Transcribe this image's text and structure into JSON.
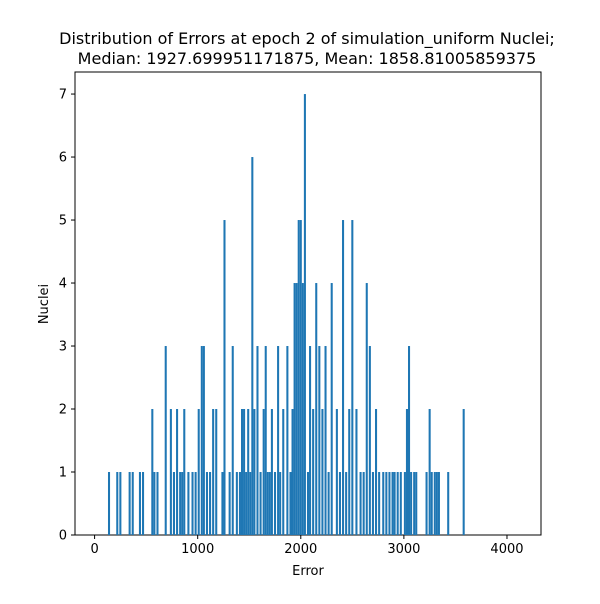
{
  "chart_data": {
    "type": "bar",
    "title_line1": "Distribution of Errors at epoch 2 of simulation_uniform Nuclei;",
    "title_line2": "Median: 1927.699951171875, Mean: 1858.81005859375",
    "xlabel": "Error",
    "ylabel": "Nuclei",
    "xlim": [
      -190,
      4330
    ],
    "ylim": [
      0,
      7.35
    ],
    "xticks": [
      0,
      1000,
      2000,
      3000,
      4000
    ],
    "yticks": [
      0,
      1,
      2,
      3,
      4,
      5,
      6,
      7
    ],
    "bin_width": 20,
    "color": "#1f77b4",
    "bins": [
      [
        130,
        1
      ],
      [
        210,
        1
      ],
      [
        240,
        1
      ],
      [
        330,
        1
      ],
      [
        360,
        1
      ],
      [
        430,
        1
      ],
      [
        460,
        1
      ],
      [
        550,
        2
      ],
      [
        570,
        1
      ],
      [
        600,
        1
      ],
      [
        680,
        3
      ],
      [
        730,
        2
      ],
      [
        760,
        1
      ],
      [
        790,
        2
      ],
      [
        820,
        1
      ],
      [
        840,
        1
      ],
      [
        860,
        2
      ],
      [
        900,
        1
      ],
      [
        940,
        1
      ],
      [
        970,
        1
      ],
      [
        1000,
        2
      ],
      [
        1030,
        3
      ],
      [
        1050,
        3
      ],
      [
        1080,
        1
      ],
      [
        1110,
        1
      ],
      [
        1140,
        2
      ],
      [
        1170,
        2
      ],
      [
        1230,
        1
      ],
      [
        1250,
        5
      ],
      [
        1300,
        1
      ],
      [
        1330,
        3
      ],
      [
        1370,
        1
      ],
      [
        1400,
        1
      ],
      [
        1420,
        2
      ],
      [
        1440,
        2
      ],
      [
        1460,
        1
      ],
      [
        1480,
        2
      ],
      [
        1500,
        1
      ],
      [
        1520,
        6
      ],
      [
        1540,
        2
      ],
      [
        1570,
        3
      ],
      [
        1600,
        1
      ],
      [
        1630,
        2
      ],
      [
        1650,
        3
      ],
      [
        1670,
        1
      ],
      [
        1690,
        1
      ],
      [
        1710,
        2
      ],
      [
        1740,
        1
      ],
      [
        1770,
        3
      ],
      [
        1790,
        1
      ],
      [
        1820,
        2
      ],
      [
        1860,
        3
      ],
      [
        1890,
        1
      ],
      [
        1910,
        2
      ],
      [
        1930,
        4
      ],
      [
        1950,
        4
      ],
      [
        1970,
        5
      ],
      [
        1990,
        5
      ],
      [
        2010,
        4
      ],
      [
        2030,
        7
      ],
      [
        2060,
        1
      ],
      [
        2080,
        3
      ],
      [
        2110,
        2
      ],
      [
        2140,
        4
      ],
      [
        2170,
        3
      ],
      [
        2200,
        2
      ],
      [
        2230,
        3
      ],
      [
        2260,
        1
      ],
      [
        2290,
        4
      ],
      [
        2340,
        2
      ],
      [
        2370,
        1
      ],
      [
        2400,
        5
      ],
      [
        2430,
        1
      ],
      [
        2460,
        2
      ],
      [
        2490,
        5
      ],
      [
        2530,
        2
      ],
      [
        2570,
        1
      ],
      [
        2600,
        1
      ],
      [
        2630,
        4
      ],
      [
        2660,
        3
      ],
      [
        2690,
        1
      ],
      [
        2720,
        2
      ],
      [
        2750,
        1
      ],
      [
        2790,
        1
      ],
      [
        2820,
        1
      ],
      [
        2850,
        1
      ],
      [
        2880,
        1
      ],
      [
        2900,
        1
      ],
      [
        2930,
        1
      ],
      [
        2960,
        1
      ],
      [
        3000,
        1
      ],
      [
        3020,
        2
      ],
      [
        3040,
        3
      ],
      [
        3060,
        1
      ],
      [
        3090,
        1
      ],
      [
        3110,
        1
      ],
      [
        3210,
        1
      ],
      [
        3240,
        2
      ],
      [
        3260,
        1
      ],
      [
        3290,
        1
      ],
      [
        3310,
        1
      ],
      [
        3330,
        1
      ],
      [
        3420,
        1
      ],
      [
        3570,
        2
      ]
    ]
  }
}
